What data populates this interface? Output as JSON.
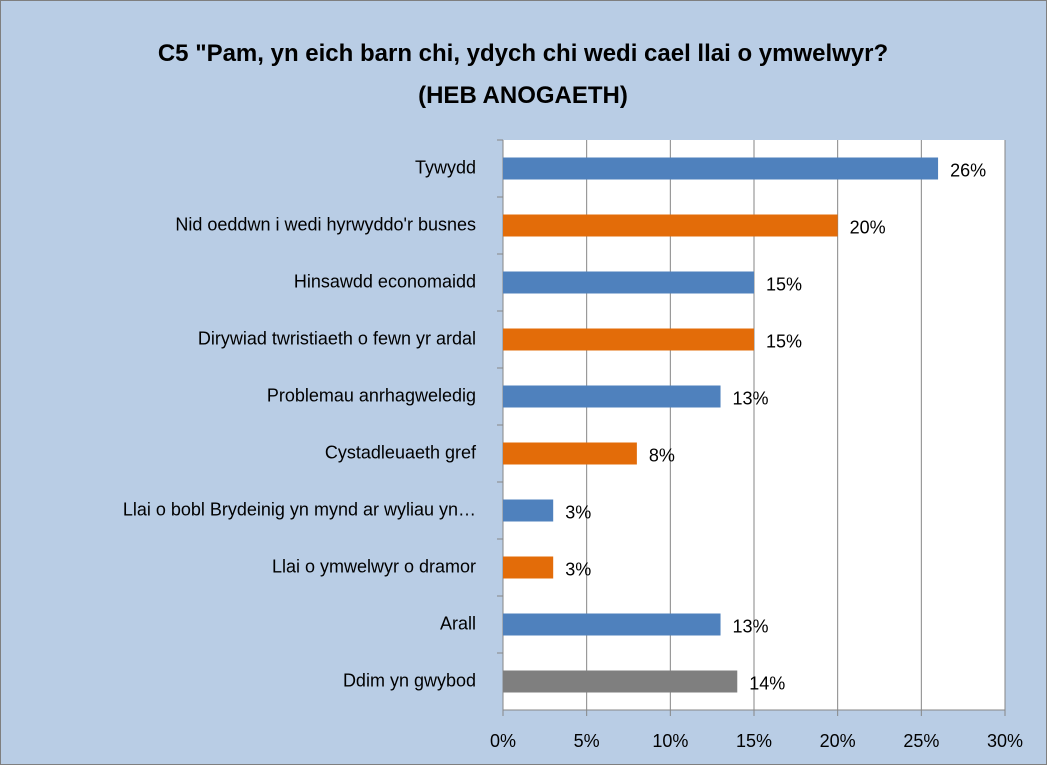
{
  "chart_data": {
    "type": "hbar",
    "title": "C5 \"Pam, yn eich barn chi, ydych chi wedi cael llai o ymwelwyr? (HEB ANOGAETH)",
    "categories": [
      "Tywydd",
      "Nid oeddwn i wedi hyrwyddo'r busnes",
      "Hinsawdd economaidd",
      "Dirywiad twristiaeth o fewn yr ardal",
      "Problemau anrhagweledig",
      "Cystadleuaeth gref",
      "Llai o bobl Brydeinig yn mynd ar wyliau yn…",
      "Llai o ymwelwyr o dramor",
      "Arall",
      "Ddim yn gwybod"
    ],
    "values": [
      26,
      20,
      15,
      15,
      13,
      8,
      3,
      3,
      13,
      14
    ],
    "value_labels": [
      "26%",
      "20%",
      "15%",
      "15%",
      "13%",
      "8%",
      "3%",
      "3%",
      "13%",
      "14%"
    ],
    "colors": [
      "#4f81bd",
      "#e36c09",
      "#4f81bd",
      "#e36c09",
      "#4f81bd",
      "#e36c09",
      "#4f81bd",
      "#e36c09",
      "#4f81bd",
      "#7f7f7f"
    ],
    "xlim": [
      0,
      30
    ],
    "xticks": [
      {
        "value": 0,
        "label": "0%"
      },
      {
        "value": 5,
        "label": "5%"
      },
      {
        "value": 10,
        "label": "10%"
      },
      {
        "value": 15,
        "label": "15%"
      },
      {
        "value": 20,
        "label": "20%"
      },
      {
        "value": 25,
        "label": "25%"
      },
      {
        "value": 30,
        "label": "30%"
      }
    ],
    "grid": true
  }
}
